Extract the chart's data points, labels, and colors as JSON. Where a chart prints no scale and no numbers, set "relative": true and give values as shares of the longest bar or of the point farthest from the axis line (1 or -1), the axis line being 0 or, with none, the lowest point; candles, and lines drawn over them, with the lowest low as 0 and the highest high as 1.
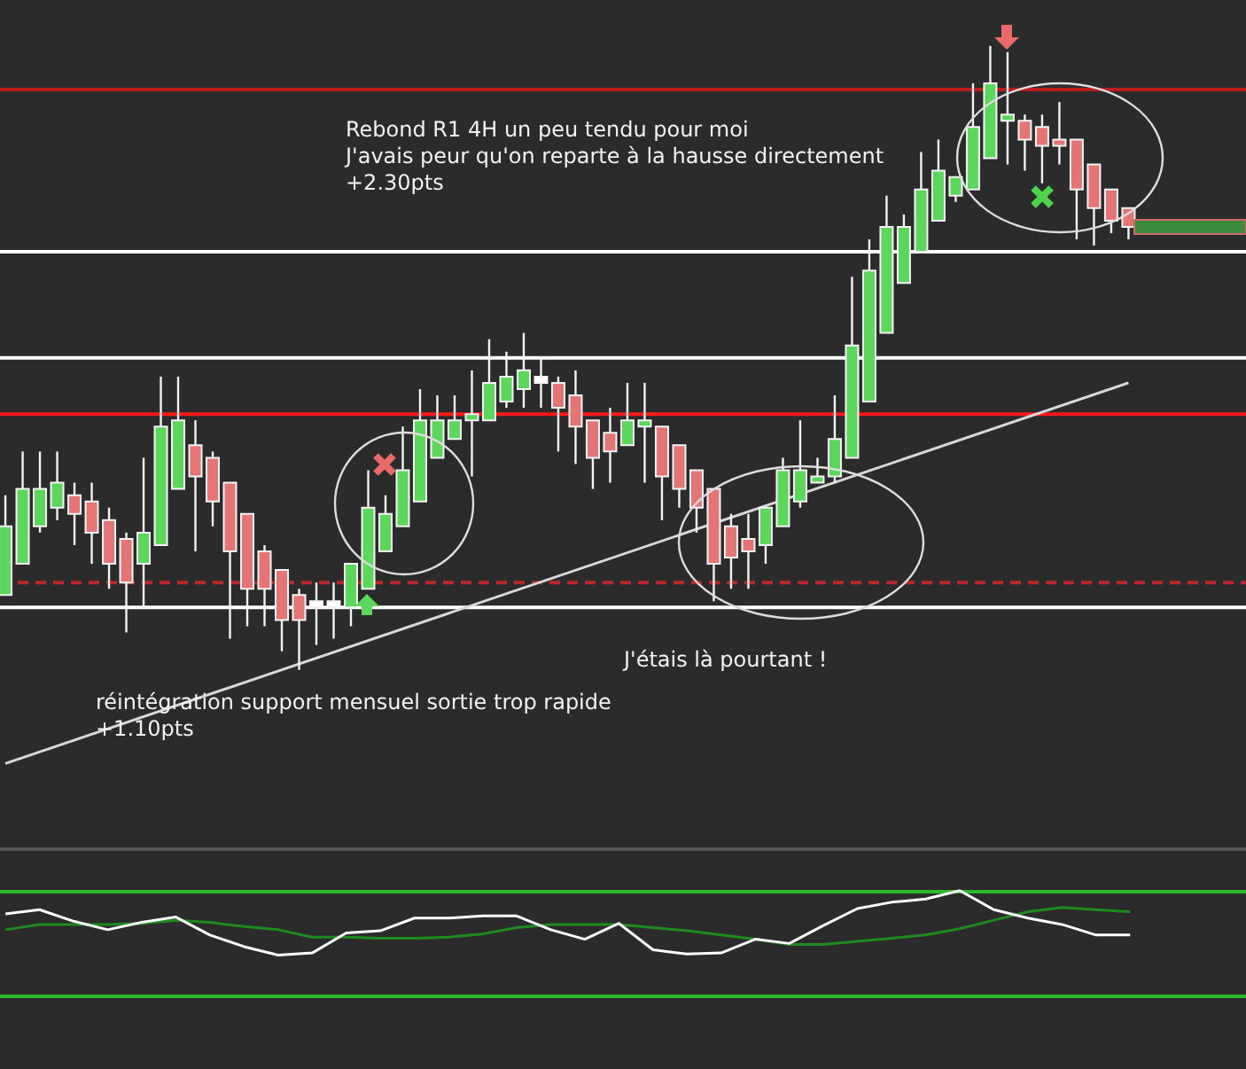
{
  "chart_data": [
    {
      "type": "candlestick",
      "relative": true,
      "legend": false,
      "categories": [
        null,
        null,
        null,
        null,
        null,
        null,
        null,
        null,
        null,
        null,
        null,
        null,
        null,
        null,
        null,
        null,
        null,
        null,
        null,
        null,
        null,
        null,
        null,
        null,
        null,
        null,
        null,
        null,
        null,
        null,
        null,
        null,
        null,
        null,
        null,
        null,
        null,
        null,
        null,
        null,
        null,
        null,
        null,
        null,
        null,
        null,
        null,
        null,
        null,
        null,
        null,
        null,
        null,
        null,
        null,
        null,
        null,
        null,
        null,
        null,
        null,
        null,
        null,
        null,
        null,
        null
      ],
      "ohlc": [
        [
          0.12,
          0.28,
          0.12,
          0.23
        ],
        [
          0.17,
          0.35,
          0.17,
          0.29
        ],
        [
          0.23,
          0.35,
          0.22,
          0.29
        ],
        [
          0.26,
          0.35,
          0.24,
          0.3
        ],
        [
          0.28,
          0.3,
          0.2,
          0.25
        ],
        [
          0.27,
          0.3,
          0.17,
          0.22
        ],
        [
          0.24,
          0.26,
          0.13,
          0.17
        ],
        [
          0.21,
          0.22,
          0.06,
          0.14
        ],
        [
          0.17,
          0.34,
          0.1,
          0.22
        ],
        [
          0.2,
          0.47,
          0.2,
          0.39
        ],
        [
          0.29,
          0.47,
          0.29,
          0.4
        ],
        [
          0.36,
          0.4,
          0.19,
          0.31
        ],
        [
          0.34,
          0.35,
          0.23,
          0.27
        ],
        [
          0.3,
          0.3,
          0.05,
          0.19
        ],
        [
          0.25,
          0.25,
          0.07,
          0.13
        ],
        [
          0.19,
          0.2,
          0.07,
          0.13
        ],
        [
          0.16,
          0.16,
          0.03,
          0.08
        ],
        [
          0.12,
          0.13,
          0,
          0.08
        ],
        [
          0.1,
          0.14,
          0.04,
          0.11
        ],
        [
          0.1,
          0.14,
          0.05,
          0.11
        ],
        [
          0.1,
          0.17,
          0.07,
          0.17
        ],
        [
          0.13,
          0.32,
          0.13,
          0.26
        ],
        [
          0.19,
          0.28,
          0.19,
          0.25
        ],
        [
          0.23,
          0.39,
          0.23,
          0.32
        ],
        [
          0.27,
          0.45,
          0.27,
          0.4
        ],
        [
          0.34,
          0.44,
          0.34,
          0.4
        ],
        [
          0.37,
          0.44,
          0.37,
          0.4
        ],
        [
          0.4,
          0.48,
          0.31,
          0.41
        ],
        [
          0.4,
          0.53,
          0.4,
          0.46
        ],
        [
          0.43,
          0.51,
          0.42,
          0.47
        ],
        [
          0.45,
          0.54,
          0.42,
          0.48
        ],
        [
          0.46,
          0.5,
          0.42,
          0.47
        ],
        [
          0.46,
          0.47,
          0.35,
          0.42
        ],
        [
          0.44,
          0.48,
          0.33,
          0.39
        ],
        [
          0.4,
          0.4,
          0.29,
          0.34
        ],
        [
          0.38,
          0.42,
          0.3,
          0.35
        ],
        [
          0.36,
          0.46,
          0.36,
          0.4
        ],
        [
          0.39,
          0.46,
          0.3,
          0.4
        ],
        [
          0.39,
          0.39,
          0.24,
          0.31
        ],
        [
          0.36,
          0.36,
          0.26,
          0.29
        ],
        [
          0.32,
          0.32,
          0.22,
          0.26
        ],
        [
          0.29,
          0.29,
          0.11,
          0.17
        ],
        [
          0.23,
          0.25,
          0.13,
          0.18
        ],
        [
          0.21,
          0.25,
          0.13,
          0.19
        ],
        [
          0.2,
          0.26,
          0.17,
          0.26
        ],
        [
          0.23,
          0.34,
          0.23,
          0.32
        ],
        [
          0.27,
          0.4,
          0.26,
          0.32
        ],
        [
          0.3,
          0.34,
          0.3,
          0.31
        ],
        [
          0.31,
          0.44,
          0.3,
          0.37
        ],
        [
          0.34,
          0.63,
          0.34,
          0.52
        ],
        [
          0.43,
          0.69,
          0.43,
          0.64
        ],
        [
          0.54,
          0.76,
          0.54,
          0.71
        ],
        [
          0.62,
          0.73,
          0.62,
          0.71
        ],
        [
          0.67,
          0.83,
          0.67,
          0.77
        ],
        [
          0.72,
          0.85,
          0.72,
          0.8
        ],
        [
          0.76,
          0.79,
          0.75,
          0.79
        ],
        [
          0.77,
          0.94,
          0.77,
          0.87
        ],
        [
          0.82,
          1,
          0.82,
          0.94
        ],
        [
          0.88,
          0.99,
          0.81,
          0.89
        ],
        [
          0.88,
          0.89,
          0.8,
          0.85
        ],
        [
          0.87,
          0.89,
          0.78,
          0.84
        ],
        [
          0.85,
          0.91,
          0.81,
          0.84
        ],
        [
          0.85,
          0.85,
          0.69,
          0.77
        ],
        [
          0.81,
          0.81,
          0.68,
          0.74
        ],
        [
          0.77,
          0.77,
          0.7,
          0.72
        ],
        [
          0.74,
          0.74,
          0.69,
          0.71
        ]
      ],
      "colors": [
        "#5dd65d",
        "#5dd65d",
        "#5dd65d",
        "#5dd65d",
        "#e37575",
        "#e37575",
        "#e37575",
        "#e37575",
        "#5dd65d",
        "#5dd65d",
        "#5dd65d",
        "#e37575",
        "#e37575",
        "#e37575",
        "#e37575",
        "#e37575",
        "#e37575",
        "#e37575",
        "#ffffff",
        "#ffffff",
        "#5dd65d",
        "#5dd65d",
        "#5dd65d",
        "#5dd65d",
        "#5dd65d",
        "#5dd65d",
        "#5dd65d",
        "#5dd65d",
        "#5dd65d",
        "#5dd65d",
        "#5dd65d",
        "#ffffff",
        "#e37575",
        "#e37575",
        "#e37575",
        "#e37575",
        "#5dd65d",
        "#5dd65d",
        "#e37575",
        "#e37575",
        "#e37575",
        "#e37575",
        "#e37575",
        "#e37575",
        "#5dd65d",
        "#5dd65d",
        "#5dd65d",
        "#5dd65d",
        "#5dd65d",
        "#5dd65d",
        "#5dd65d",
        "#5dd65d",
        "#5dd65d",
        "#5dd65d",
        "#5dd65d",
        "#5dd65d",
        "#5dd65d",
        "#5dd65d",
        "#5dd65d",
        "#e37575",
        "#e37575",
        "#e37575",
        "#e37575",
        "#e37575",
        "#e37575",
        "#e37575"
      ],
      "series": [
        {
          "type": "line",
          "color": "#d8d8d8",
          "values": [
            -0.15,
            null,
            null,
            null,
            null,
            null,
            null,
            null,
            null,
            null,
            null,
            null,
            null,
            null,
            null,
            null,
            null,
            null,
            null,
            null,
            null,
            null,
            null,
            null,
            null,
            null,
            null,
            null,
            null,
            null,
            null,
            null,
            null,
            null,
            null,
            null,
            null,
            null,
            null,
            null,
            null,
            null,
            null,
            null,
            null,
            null,
            null,
            null,
            null,
            null,
            null,
            null,
            null,
            null,
            null,
            null,
            null,
            null,
            null,
            null,
            null,
            null,
            null,
            null,
            null,
            0.46
          ]
        }
      ],
      "ref_lines": [
        {
          "axis": "y",
          "value": 0.93,
          "color": "#b81c1c",
          "line_style": "solid"
        },
        {
          "axis": "y",
          "value": 0.67,
          "color": "#ffffff",
          "line_style": "solid"
        },
        {
          "axis": "y",
          "value": 0.5,
          "color": "#ffffff",
          "line_style": "solid"
        },
        {
          "axis": "y",
          "value": 0.41,
          "color": "#ff1a1a",
          "line_style": "solid"
        },
        {
          "axis": "y",
          "value": 0.14,
          "color": "#b82a2a",
          "line_style": "dashed"
        },
        {
          "axis": "y",
          "value": 0.1,
          "color": "#ffffff",
          "line_style": "solid"
        }
      ],
      "annotations": [
        "Rebond R1 4H un peu tendu pour moi\nJ'avais peur qu'on reparte à la hausse directement\n+2.30pts",
        "J'étais là pourtant !",
        "réintégration support mensuel sortie trop rapide\n+1.10pts"
      ]
    },
    {
      "type": "line",
      "relative": true,
      "legend": false,
      "categories": [
        null,
        null,
        null,
        null,
        null,
        null,
        null,
        null,
        null,
        null,
        null,
        null,
        null,
        null,
        null,
        null,
        null,
        null,
        null,
        null,
        null,
        null,
        null,
        null,
        null,
        null,
        null,
        null,
        null,
        null,
        null,
        null,
        null,
        null
      ],
      "series": [
        {
          "color": "#ffffff",
          "values": [
            0.78,
            0.82,
            0.71,
            0.63,
            0.7,
            0.75,
            0.58,
            0.47,
            0.39,
            0.41,
            0.6,
            0.62,
            0.74,
            0.74,
            0.76,
            0.76,
            0.63,
            0.54,
            0.69,
            0.44,
            0.4,
            0.41,
            0.54,
            0.5,
            0.67,
            0.83,
            0.89,
            0.92,
            1,
            0.82,
            0.74,
            0.68,
            0.58,
            0.58
          ]
        },
        {
          "color": "#1f8a1f",
          "values": [
            0.63,
            0.68,
            0.68,
            0.68,
            0.69,
            0.72,
            0.7,
            0.66,
            0.63,
            0.56,
            0.56,
            0.55,
            0.55,
            0.56,
            0.59,
            0.65,
            0.68,
            0.68,
            0.68,
            0.65,
            0.62,
            0.58,
            0.54,
            0.49,
            0.49,
            0.52,
            0.55,
            0.58,
            0.64,
            0.72,
            0.8,
            0.84,
            0.82,
            0.8
          ]
        }
      ],
      "ref_lines": [
        {
          "axis": "y",
          "value": 0.99,
          "color": "#2db82d",
          "line_style": "solid"
        }
      ]
    }
  ]
}
